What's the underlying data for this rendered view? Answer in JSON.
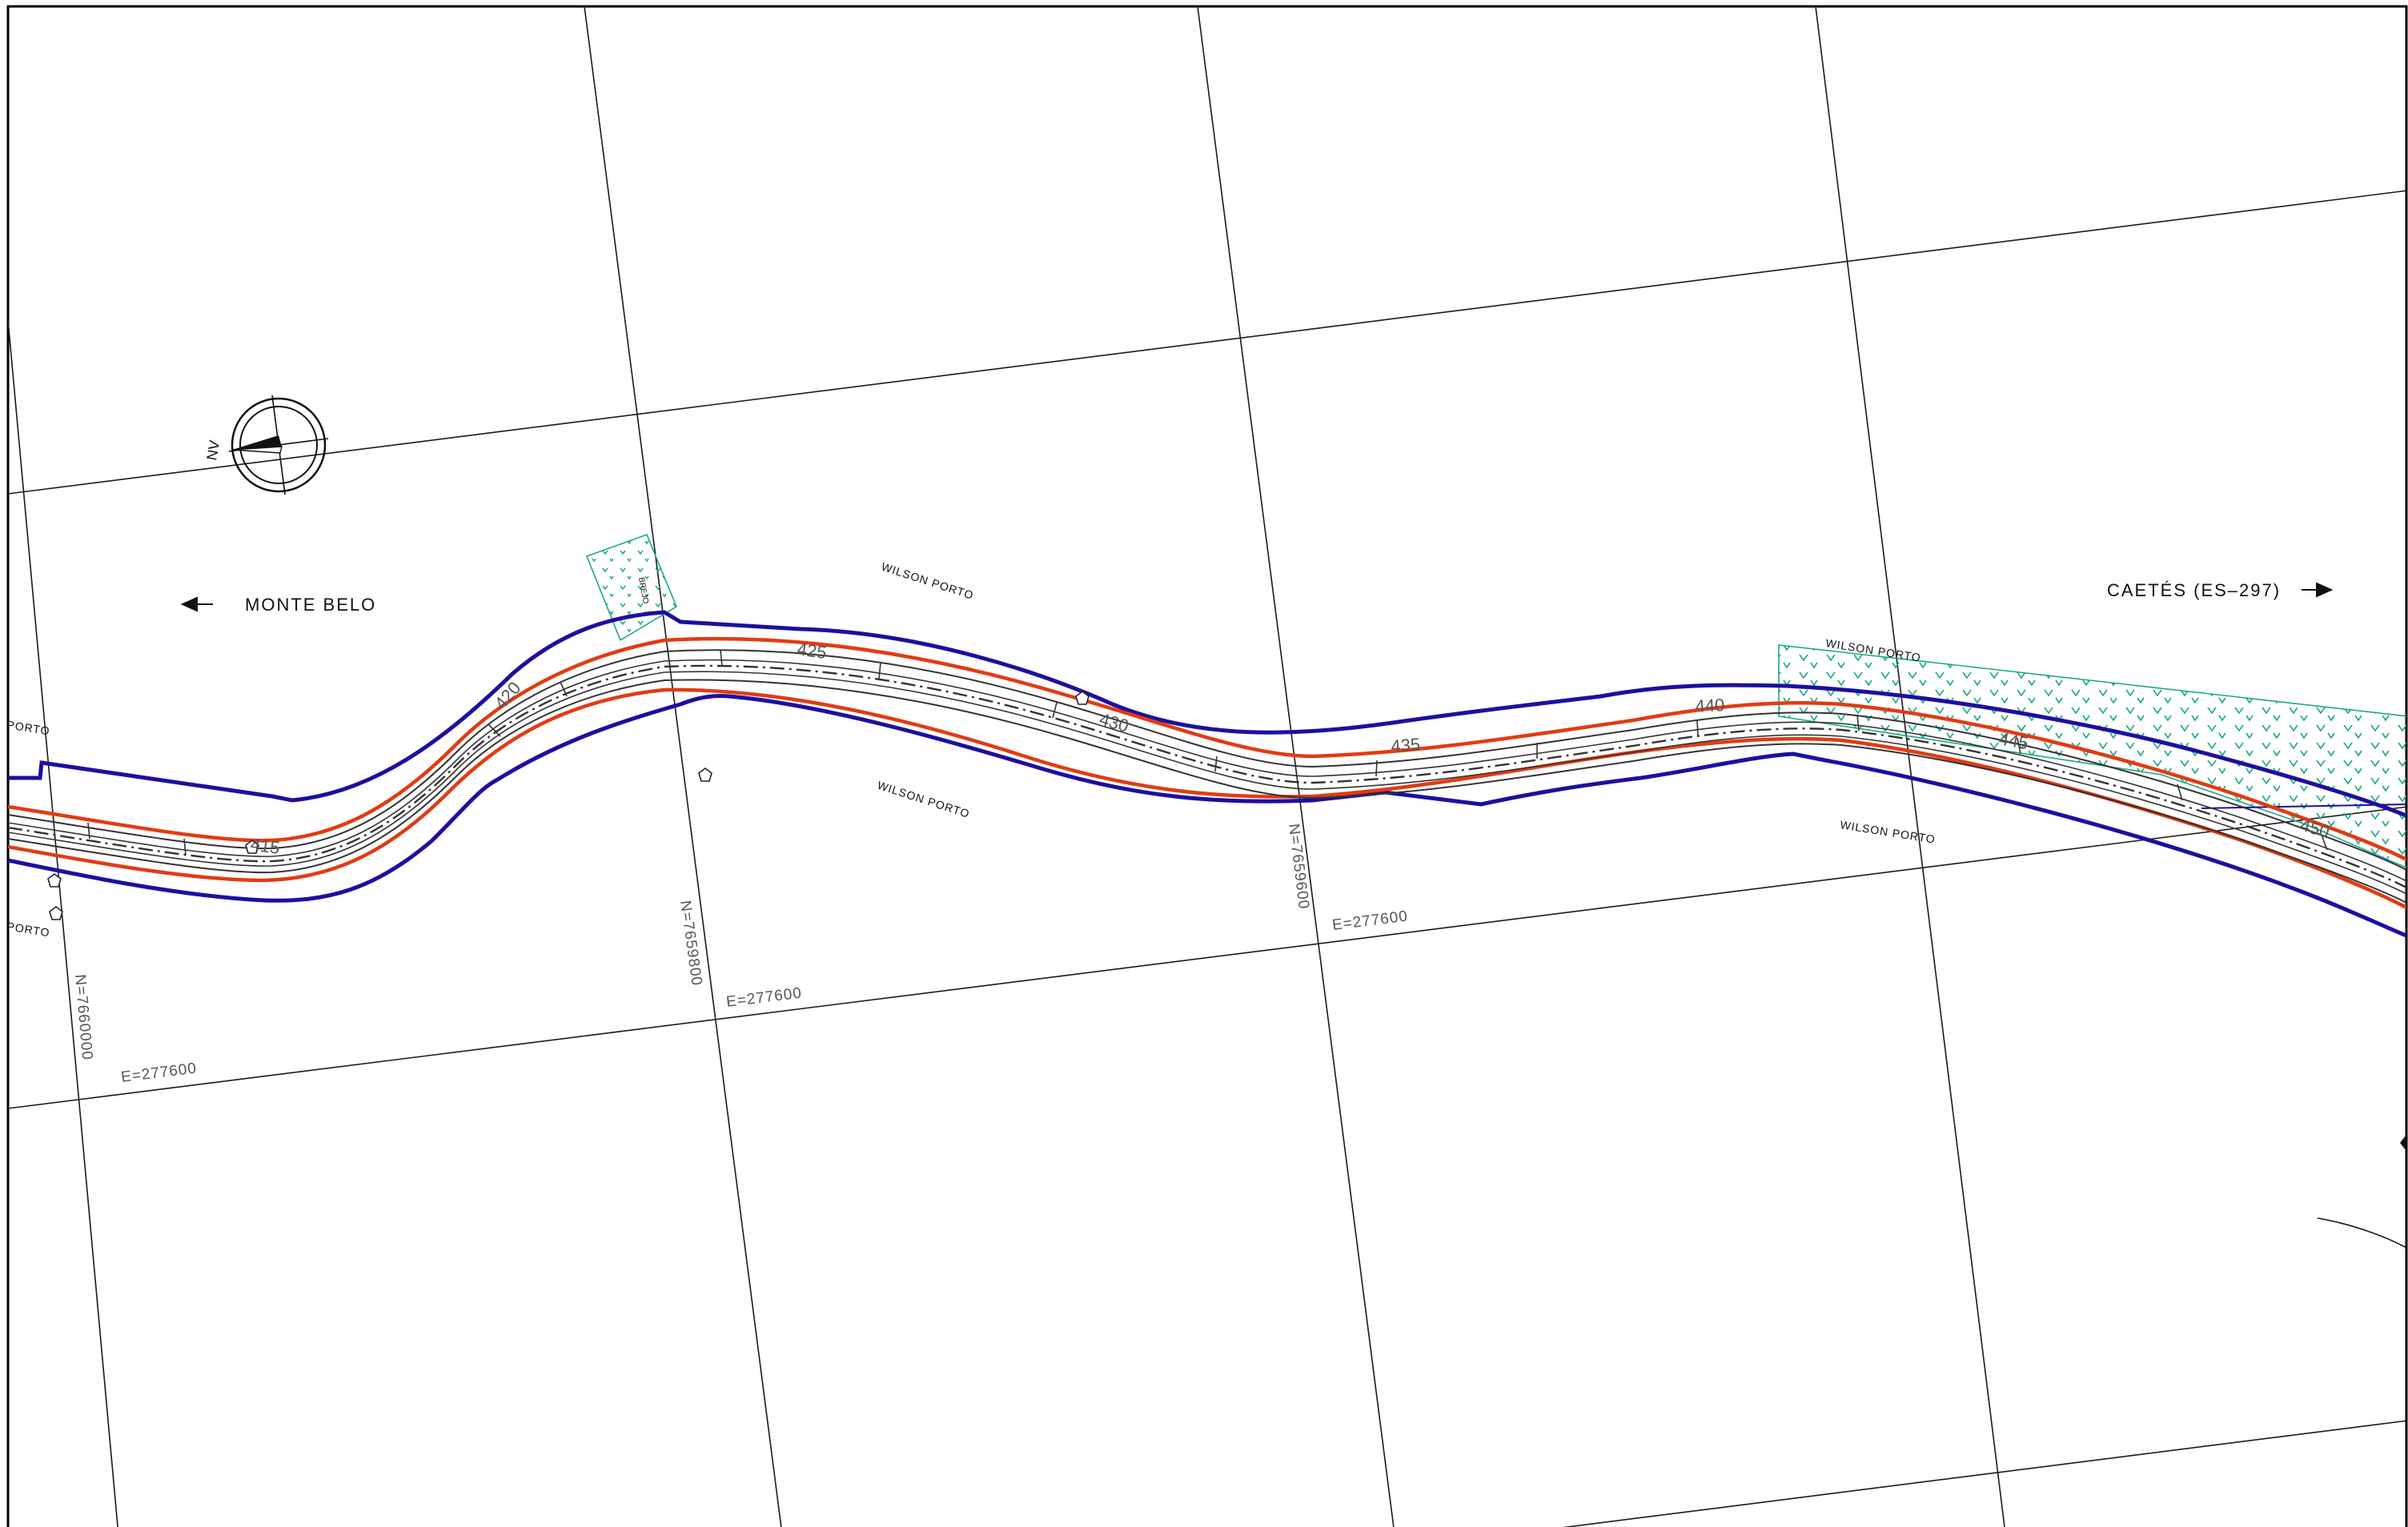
{
  "colors": {
    "right_of_way": "#1c0fa0",
    "road_edge": "#e23b12",
    "road_lines": "#333333",
    "grid": "#1a1a1a",
    "hatch": "#1aa88a"
  },
  "north_arrow": {
    "label": "NV",
    "icon": "north-arrow-compass-icon"
  },
  "places": {
    "west": {
      "label": "MONTE BELO",
      "icon": "arrow-left-icon"
    },
    "east": {
      "label": "CAETÉS (ES–297)",
      "icon": "arrow-right-icon"
    }
  },
  "owners": {
    "north_1": "WILSON PORTO",
    "north_2": "WILSON PORTO",
    "south_1": "WILSON PORTO",
    "south_2": "WILSON PORTO",
    "edge_top": "PORTO",
    "edge_bottom": "PORTO"
  },
  "grid_labels": {
    "n_7660000": "N=7660000",
    "n_7659800": "N=7659800",
    "n_7659600": "N=7659600",
    "e_1": "E=277600",
    "e_2": "E=277600",
    "e_3": "E=277600"
  },
  "stations": {
    "s415": "415",
    "s420": "420",
    "s425": "425",
    "s430": "430",
    "s435": "435",
    "s440": "440",
    "s445": "445",
    "s450": "450"
  },
  "features": {
    "brejo": "BREJO"
  }
}
